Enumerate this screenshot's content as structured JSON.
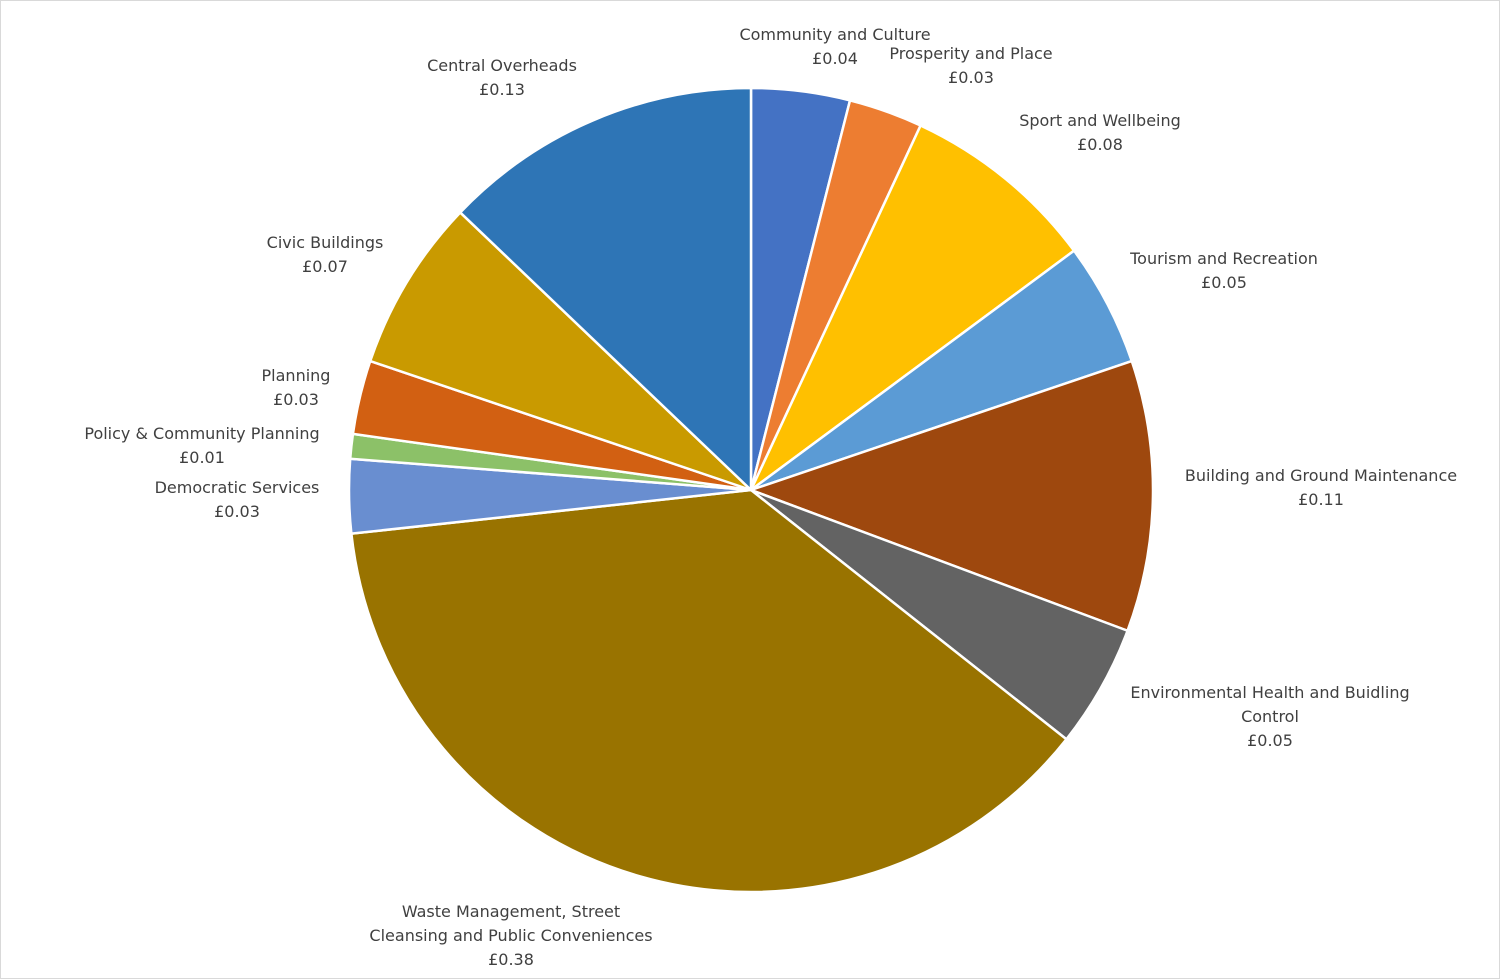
{
  "chart_data": {
    "type": "pie",
    "title": "",
    "slices": [
      {
        "name": "Community and Culture",
        "value": 0.04,
        "label": "£0.04",
        "color": "#4472C4"
      },
      {
        "name": "Prosperity and Place",
        "value": 0.03,
        "label": "£0.03",
        "color": "#ED7D31"
      },
      {
        "name": "Sport and Wellbeing",
        "value": 0.08,
        "label": "£0.08",
        "color": "#FFC000"
      },
      {
        "name": "Tourism and Recreation",
        "value": 0.05,
        "label": "£0.05",
        "color": "#5B9BD5"
      },
      {
        "name": "Building and Ground Maintenance",
        "value": 0.11,
        "label": "£0.11",
        "color": "#9E480E"
      },
      {
        "name": "Environmental Health and Buidling Control",
        "value": 0.05,
        "label": "£0.05",
        "color": "#636363"
      },
      {
        "name": "Waste Management, Street Cleansing and Public Conveniences",
        "value": 0.38,
        "label": "£0.38",
        "color": "#997300"
      },
      {
        "name": "Democratic Services",
        "value": 0.03,
        "label": "£0.03",
        "color": "#698ED0"
      },
      {
        "name": "Policy & Community Planning",
        "value": 0.01,
        "label": "£0.01",
        "color": "#8CC168"
      },
      {
        "name": "Planning",
        "value": 0.03,
        "label": "£0.03",
        "color": "#D26012"
      },
      {
        "name": "Civic Buildings",
        "value": 0.07,
        "label": "£0.07",
        "color": "#C99A00"
      },
      {
        "name": "Central Overheads",
        "value": 0.13,
        "label": "£0.13",
        "color": "#2E75B6"
      }
    ],
    "start_angle_deg": 0,
    "direction": "clockwise",
    "data_labels": "category-and-value",
    "legend": "none"
  }
}
